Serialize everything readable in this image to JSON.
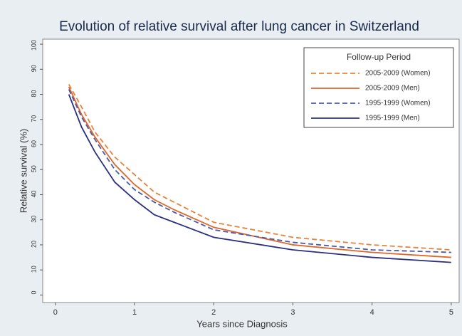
{
  "chart_data": {
    "type": "line",
    "title": "Evolution of relative survival after lung cancer in Switzerland",
    "x_label": "Years since Diagnosis",
    "y_label": "Relative survival (%)",
    "legend_title": "Follow-up Period",
    "legend_position": "top-right",
    "x": [
      0.17,
      0.33,
      0.5,
      0.75,
      1,
      1.25,
      1.5,
      2,
      3,
      4,
      5
    ],
    "series": [
      {
        "name": "2005-2009 (Women)",
        "color": "#e8823a",
        "dashed": true,
        "values": [
          84,
          75,
          65,
          55,
          48,
          41,
          37,
          29,
          23,
          20,
          18
        ]
      },
      {
        "name": "2005-2009 (Men)",
        "color": "#e0652a",
        "dashed": false,
        "values": [
          83,
          72,
          63,
          52,
          44,
          38,
          34,
          27,
          20,
          17,
          15
        ]
      },
      {
        "name": "1995-1999 (Women)",
        "color": "#4a5aa8",
        "dashed": true,
        "values": [
          82,
          71,
          62,
          50,
          42,
          37,
          33,
          26,
          21,
          18,
          17
        ]
      },
      {
        "name": "1995-1999 (Men)",
        "color": "#2a2f80",
        "dashed": false,
        "values": [
          80,
          67,
          57,
          45,
          38,
          32,
          29,
          23,
          18,
          15,
          13
        ]
      }
    ],
    "xlim": [
      -0.16,
      5.1
    ],
    "xticks": [
      0,
      1,
      2,
      3,
      4,
      5
    ],
    "ylim": [
      -3,
      102
    ],
    "yticks": [
      0,
      10,
      20,
      30,
      40,
      50,
      60,
      70,
      80,
      90,
      100
    ]
  }
}
